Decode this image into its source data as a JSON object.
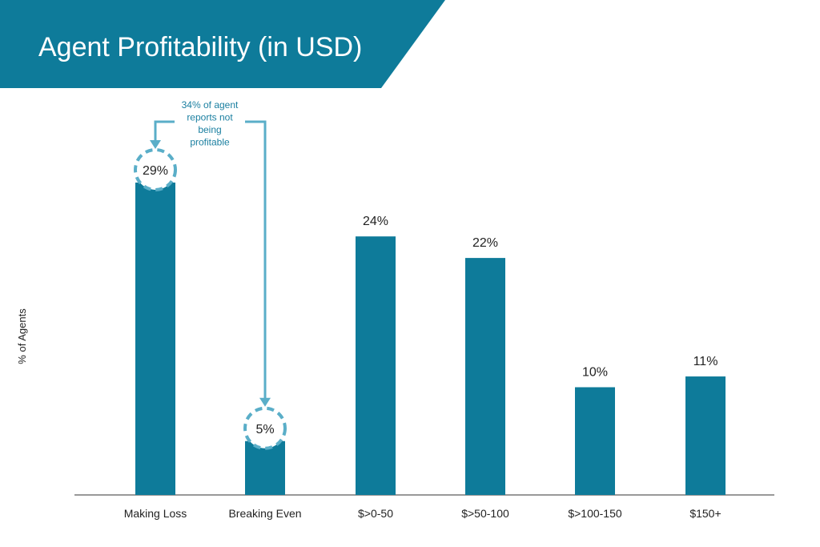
{
  "header": {
    "title": "Agent Profitability (in USD)"
  },
  "annotation": {
    "lines": [
      "34% of agent",
      "reports not",
      "being",
      "profitable"
    ]
  },
  "chart_data": {
    "type": "bar",
    "title": "Agent Profitability (in USD)",
    "ylabel": "% of Agents",
    "xlabel": "",
    "categories": [
      "Making Loss",
      "Breaking Even",
      "$>0-50",
      "$>50-100",
      "$>100-150",
      "$150+"
    ],
    "values": [
      29,
      5,
      24,
      22,
      10,
      11
    ],
    "value_labels": [
      "29%",
      "5%",
      "24%",
      "22%",
      "10%",
      "11%"
    ],
    "ylim": [
      0,
      30
    ],
    "grid": false,
    "legend": "none"
  },
  "colors": {
    "bar": "#0e7b9a",
    "header": "#0e7b9a",
    "callout": "#5aaec8",
    "annotation_text": "#1a7fa0",
    "text": "#222222"
  }
}
